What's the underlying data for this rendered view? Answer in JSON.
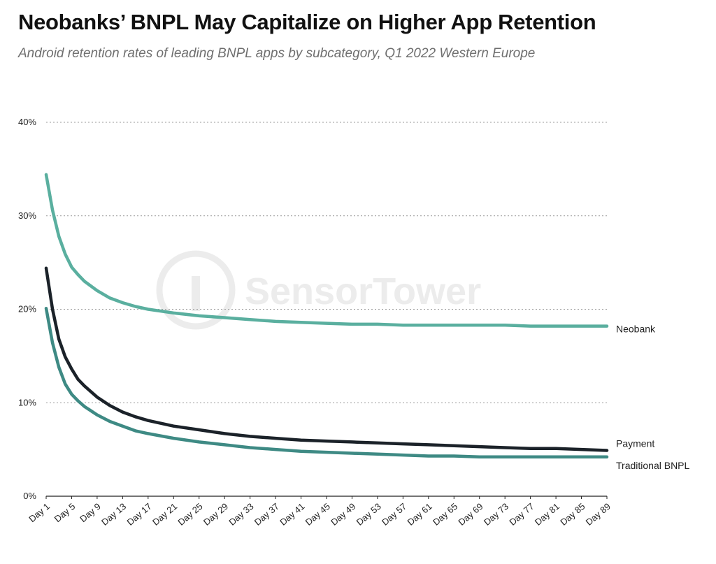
{
  "header": {
    "title": "Neobanks’ BNPL May Capitalize on Higher App Retention",
    "subtitle": "Android retention rates of leading BNPL apps by subcategory, Q1 2022 Western Europe"
  },
  "watermark": "SensorTower",
  "colors": {
    "neobank": "#5aaf9f",
    "payment": "#1b2229",
    "traditional": "#3e8a84",
    "grid": "#9a9a9a"
  },
  "chart_data": {
    "type": "line",
    "title": "Neobanks’ BNPL May Capitalize on Higher App Retention",
    "subtitle": "Android retention rates of leading BNPL apps by subcategory, Q1 2022 Western Europe",
    "xlabel": "",
    "ylabel": "",
    "ylim": [
      0,
      40
    ],
    "y_ticks": [
      "0%",
      "10%",
      "20%",
      "30%",
      "40%"
    ],
    "y_tick_values": [
      0,
      10,
      20,
      30,
      40
    ],
    "grid": "horizontal dotted",
    "x_tick_labels": [
      "Day 1",
      "Day 5",
      "Day 9",
      "Day 13",
      "Day 17",
      "Day 21",
      "Day 25",
      "Day 29",
      "Day 33",
      "Day 37",
      "Day 41",
      "Day 45",
      "Day 49",
      "Day 53",
      "Day 57",
      "Day 61",
      "Day 65",
      "Day 69",
      "Day 73",
      "Day 77",
      "Day 81",
      "Day 85",
      "Day 89"
    ],
    "x": [
      1,
      2,
      3,
      4,
      5,
      6,
      7,
      9,
      11,
      13,
      15,
      17,
      21,
      25,
      29,
      33,
      37,
      41,
      45,
      49,
      53,
      57,
      61,
      65,
      69,
      73,
      77,
      81,
      85,
      89
    ],
    "series": [
      {
        "name": "Neobank",
        "values": [
          34.4,
          30.6,
          27.8,
          25.9,
          24.5,
          23.7,
          23.0,
          22.0,
          21.2,
          20.7,
          20.3,
          20.0,
          19.6,
          19.3,
          19.1,
          18.9,
          18.7,
          18.6,
          18.5,
          18.4,
          18.4,
          18.3,
          18.3,
          18.3,
          18.3,
          18.3,
          18.2,
          18.2,
          18.2,
          18.2
        ]
      },
      {
        "name": "Payment",
        "values": [
          24.4,
          20.0,
          16.8,
          14.9,
          13.6,
          12.5,
          11.8,
          10.6,
          9.7,
          9.0,
          8.5,
          8.1,
          7.5,
          7.1,
          6.7,
          6.4,
          6.2,
          6.0,
          5.9,
          5.8,
          5.7,
          5.6,
          5.5,
          5.4,
          5.3,
          5.2,
          5.1,
          5.1,
          5.0,
          4.9
        ]
      },
      {
        "name": "Traditional BNPL",
        "values": [
          20.1,
          16.4,
          13.8,
          12.0,
          10.9,
          10.2,
          9.6,
          8.7,
          8.0,
          7.5,
          7.0,
          6.7,
          6.2,
          5.8,
          5.5,
          5.2,
          5.0,
          4.8,
          4.7,
          4.6,
          4.5,
          4.4,
          4.3,
          4.3,
          4.2,
          4.2,
          4.2,
          4.2,
          4.2,
          4.2
        ]
      }
    ]
  }
}
